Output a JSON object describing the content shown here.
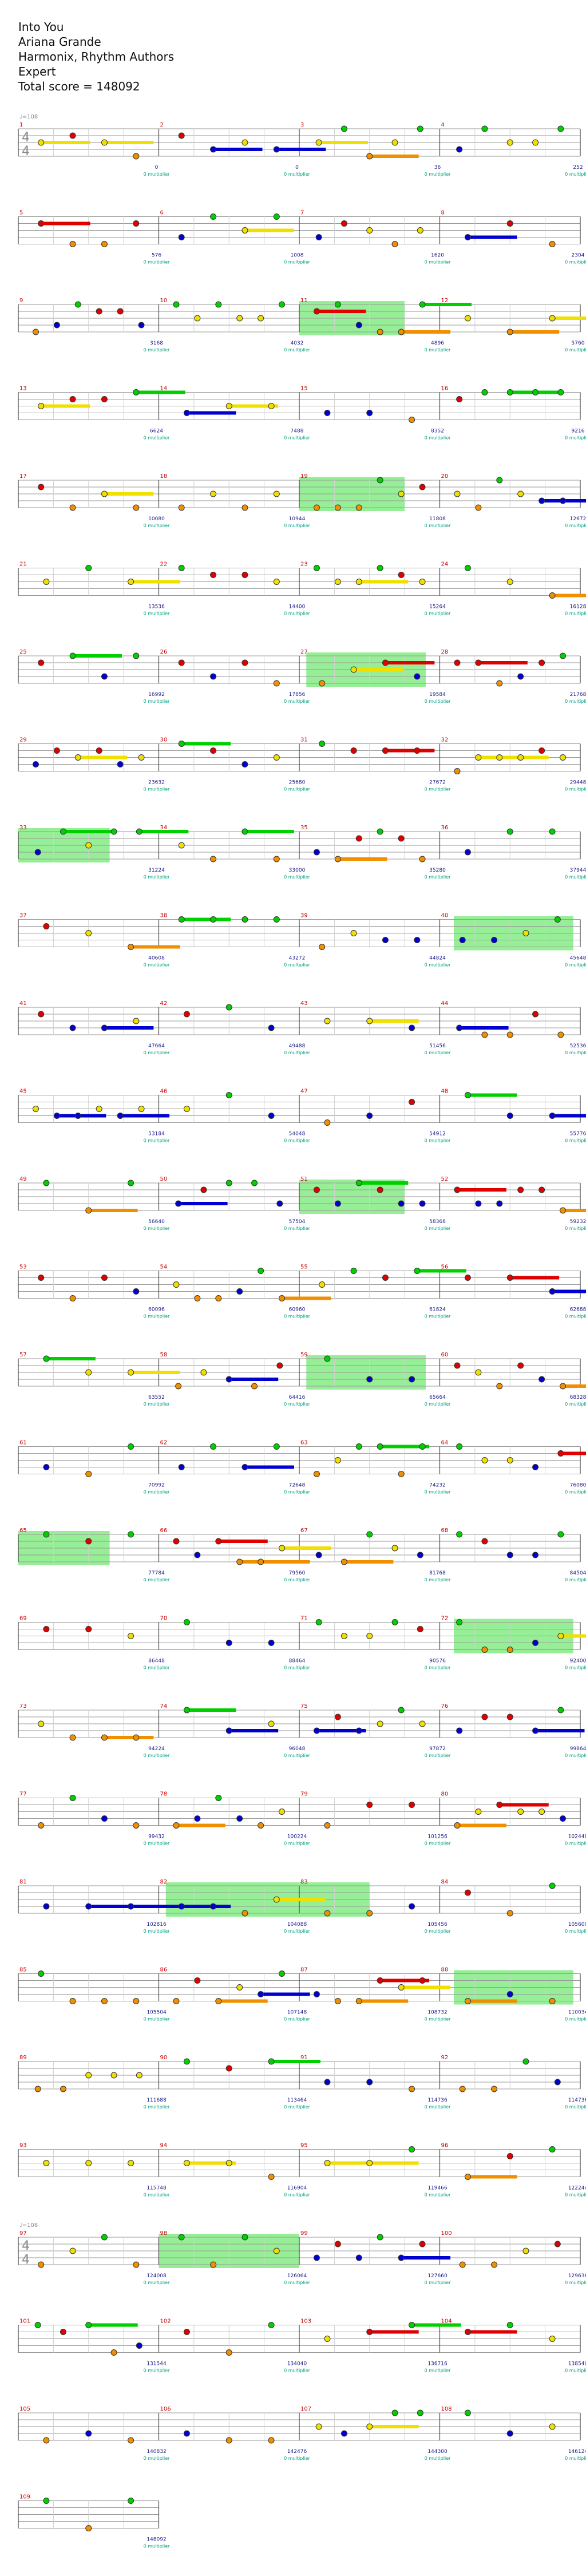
{
  "song": {
    "title": "Into You",
    "artist": "Ariana Grande",
    "charter": "Harmonix, Rhythm Authors",
    "difficulty": "Expert",
    "total_score_label": "Total score = 148092"
  },
  "tempo_markers": [
    {
      "measure": 1,
      "label": "♩=108"
    },
    {
      "measure": 97,
      "label": "♩=108"
    }
  ],
  "time_signatures": [
    {
      "measure": 1,
      "top": "4",
      "bottom": "4"
    },
    {
      "measure": 97,
      "top": "4",
      "bottom": "4"
    }
  ],
  "star_power_label": "0 multiplier",
  "colors": {
    "green": "#00d000",
    "red": "#e00000",
    "yellow": "#f0e000",
    "blue": "#0000d0",
    "orange": "#f09000",
    "star_power": "#40e040",
    "staff_lines": "#9a9a9a",
    "bar_line": "#444444",
    "measure_number": "#cc0000",
    "score_text": "#1a1a8a",
    "multiplier_text": "#00a080"
  },
  "chart_data": {
    "type": "note-chart",
    "instrument": "Guitar",
    "difficulty": "Expert",
    "rows": [
      {
        "measures": [
          1,
          2,
          3,
          4
        ],
        "scores": [
          "",
          "0",
          "0",
          "36",
          "252"
        ],
        "sp": []
      },
      {
        "measures": [
          5,
          6,
          7,
          8
        ],
        "scores": [
          "",
          "576",
          "1008",
          "1620",
          "2304"
        ],
        "sp": []
      },
      {
        "measures": [
          9,
          10,
          11,
          12
        ],
        "scores": [
          "",
          "3168",
          "4032",
          "4896",
          "5760"
        ],
        "sp": [
          {
            "from": 2.0,
            "to": 2.75
          }
        ]
      },
      {
        "measures": [
          13,
          14,
          15,
          16
        ],
        "scores": [
          "",
          "6624",
          "7488",
          "8352",
          "9216"
        ],
        "sp": []
      },
      {
        "measures": [
          17,
          18,
          19,
          20
        ],
        "scores": [
          "",
          "10080",
          "10944",
          "11808",
          "12672"
        ],
        "sp": [
          {
            "from": 2.0,
            "to": 2.75
          }
        ]
      },
      {
        "measures": [
          21,
          22,
          23,
          24
        ],
        "scores": [
          "",
          "13536",
          "14400",
          "15264",
          "16128"
        ],
        "sp": []
      },
      {
        "measures": [
          25,
          26,
          27,
          28
        ],
        "scores": [
          "",
          "16992",
          "17856",
          "19584",
          "21768"
        ],
        "sp": [
          {
            "from": 2.05,
            "to": 2.9
          }
        ]
      },
      {
        "measures": [
          29,
          30,
          31,
          32
        ],
        "scores": [
          "",
          "23632",
          "25680",
          "27672",
          "29448"
        ],
        "sp": []
      },
      {
        "measures": [
          33,
          34,
          35,
          36
        ],
        "scores": [
          "",
          "31224",
          "33000",
          "35280",
          "37944"
        ],
        "sp": [
          {
            "from": 0.0,
            "to": 0.65
          }
        ]
      },
      {
        "measures": [
          37,
          38,
          39,
          40
        ],
        "scores": [
          "",
          "40608",
          "43272",
          "44824",
          "45648"
        ],
        "sp": [
          {
            "from": 3.1,
            "to": 3.95
          }
        ]
      },
      {
        "measures": [
          41,
          42,
          43,
          44
        ],
        "scores": [
          "",
          "47664",
          "49488",
          "51456",
          "52536"
        ],
        "sp": []
      },
      {
        "measures": [
          45,
          46,
          47,
          48
        ],
        "scores": [
          "",
          "53184",
          "54048",
          "54912",
          "55776"
        ],
        "sp": []
      },
      {
        "measures": [
          49,
          50,
          51,
          52
        ],
        "scores": [
          "",
          "56640",
          "57504",
          "58368",
          "59232"
        ],
        "sp": [
          {
            "from": 2.0,
            "to": 2.75
          }
        ]
      },
      {
        "measures": [
          53,
          54,
          55,
          56
        ],
        "scores": [
          "",
          "60096",
          "60960",
          "61824",
          "62688"
        ],
        "sp": []
      },
      {
        "measures": [
          57,
          58,
          59,
          60
        ],
        "scores": [
          "",
          "63552",
          "64416",
          "65664",
          "68328"
        ],
        "sp": [
          {
            "from": 2.05,
            "to": 2.9
          }
        ]
      },
      {
        "measures": [
          61,
          62,
          63,
          64
        ],
        "scores": [
          "",
          "70992",
          "72648",
          "74232",
          "76080"
        ],
        "sp": []
      },
      {
        "measures": [
          65,
          66,
          67,
          68
        ],
        "scores": [
          "",
          "77784",
          "79560",
          "81768",
          "84504"
        ],
        "sp": [
          {
            "from": 0.0,
            "to": 0.65
          }
        ]
      },
      {
        "measures": [
          69,
          70,
          71,
          72
        ],
        "scores": [
          "",
          "86448",
          "88464",
          "90576",
          "92400"
        ],
        "sp": [
          {
            "from": 3.1,
            "to": 3.95
          }
        ]
      },
      {
        "measures": [
          73,
          74,
          75,
          76
        ],
        "scores": [
          "",
          "94224",
          "96048",
          "97872",
          "99864"
        ],
        "sp": []
      },
      {
        "measures": [
          77,
          78,
          79,
          80
        ],
        "scores": [
          "",
          "99432",
          "100224",
          "101256",
          "102448"
        ],
        "sp": []
      },
      {
        "measures": [
          81,
          82,
          83,
          84
        ],
        "scores": [
          "",
          "102816",
          "104088",
          "105456",
          "105600"
        ],
        "sp": [
          {
            "from": 1.05,
            "to": 2.5
          }
        ]
      },
      {
        "measures": [
          85,
          86,
          87,
          88
        ],
        "scores": [
          "",
          "105504",
          "107148",
          "108732",
          "110034"
        ],
        "sp": [
          {
            "from": 3.1,
            "to": 3.95
          }
        ]
      },
      {
        "measures": [
          89,
          90,
          91,
          92
        ],
        "scores": [
          "",
          "111688",
          "113464",
          "114736",
          "114736"
        ],
        "sp": []
      },
      {
        "measures": [
          93,
          94,
          95,
          96
        ],
        "scores": [
          "",
          "115748",
          "116904",
          "119466",
          "122244"
        ],
        "sp": []
      },
      {
        "measures": [
          97,
          98,
          99,
          100
        ],
        "scores": [
          "",
          "124008",
          "126064",
          "127660",
          "129636"
        ],
        "sp": [
          {
            "from": 1.0,
            "to": 2.0
          }
        ]
      },
      {
        "measures": [
          101,
          102,
          103,
          104
        ],
        "scores": [
          "",
          "131544",
          "134040",
          "136716",
          "138540"
        ],
        "sp": []
      },
      {
        "measures": [
          105,
          106,
          107,
          108
        ],
        "scores": [
          "",
          "140832",
          "142476",
          "144300",
          "146124"
        ],
        "sp": []
      },
      {
        "measures": [
          109
        ],
        "scores": [
          "",
          "148092"
        ],
        "sp": []
      }
    ]
  }
}
